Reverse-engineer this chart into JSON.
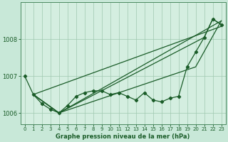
{
  "title": "Graphe pression niveau de la mer (hPa)",
  "background_color": "#c8e8d8",
  "plot_bg_color": "#d4eee0",
  "grid_color": "#a0c8b0",
  "line_color": "#1a5c28",
  "xlim": [
    -0.5,
    23.5
  ],
  "ylim": [
    1005.7,
    1009.0
  ],
  "yticks": [
    1006,
    1007,
    1008
  ],
  "xtick_labels": [
    "0",
    "1",
    "2",
    "3",
    "4",
    "5",
    "6",
    "7",
    "8",
    "9",
    "10",
    "11",
    "12",
    "13",
    "14",
    "15",
    "16",
    "17",
    "18",
    "19",
    "20",
    "21",
    "22",
    "23"
  ],
  "line_main_x": [
    0,
    1,
    2,
    3,
    4,
    5,
    6,
    7,
    8,
    9,
    10,
    11,
    12,
    13,
    14,
    15,
    16,
    17,
    18,
    19,
    20,
    21,
    22,
    23
  ],
  "line_main_y": [
    1007.0,
    1006.5,
    1006.25,
    1006.1,
    1006.0,
    1006.2,
    1006.45,
    1006.55,
    1006.6,
    1006.6,
    1006.5,
    1006.55,
    1006.45,
    1006.35,
    1006.55,
    1006.35,
    1006.3,
    1006.4,
    1006.45,
    1007.25,
    1007.65,
    1008.05,
    1008.55,
    1008.4
  ],
  "trend1_x": [
    1,
    23
  ],
  "trend1_y": [
    1006.5,
    1008.35
  ],
  "trend2_x": [
    1,
    4,
    23
  ],
  "trend2_y": [
    1006.5,
    1006.0,
    1008.5
  ],
  "trend3_x": [
    1,
    4,
    20,
    23
  ],
  "trend3_y": [
    1006.5,
    1006.0,
    1007.25,
    1008.5
  ],
  "trend4_x": [
    1,
    4,
    21,
    22,
    23
  ],
  "trend4_y": [
    1006.5,
    1006.0,
    1008.05,
    1008.55,
    1008.4
  ]
}
